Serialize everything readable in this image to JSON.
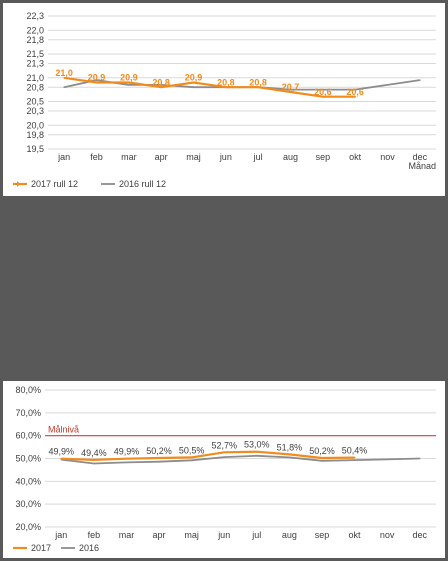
{
  "chart_data": [
    {
      "type": "line",
      "categories": [
        "jan",
        "feb",
        "mar",
        "apr",
        "maj",
        "jun",
        "jul",
        "aug",
        "sep",
        "okt",
        "nov",
        "dec"
      ],
      "xlabel": "Månad",
      "ylim": [
        19.5,
        22.3
      ],
      "yticks": [
        "22,3",
        "22,0",
        "21,8",
        "21,5",
        "21,3",
        "21,0",
        "20,8",
        "20,5",
        "20,3",
        "20,0",
        "19,8",
        "19,5"
      ],
      "ytick_values": [
        22.3,
        22.0,
        21.8,
        21.5,
        21.3,
        21.0,
        20.8,
        20.5,
        20.3,
        20.0,
        19.8,
        19.5
      ],
      "grid": true,
      "legend": "bottom-left",
      "series": [
        {
          "name": "2017 rull 12",
          "color": "#f08c1e",
          "values": [
            21.0,
            20.9,
            20.9,
            20.8,
            20.9,
            20.8,
            20.8,
            20.7,
            20.6,
            20.6,
            null,
            null
          ],
          "labels": [
            "21,0",
            "20,9",
            "20,9",
            "20,8",
            "20,9",
            "20,8",
            "20,8",
            "20,7",
            "20,6",
            "20,6",
            null,
            null
          ]
        },
        {
          "name": "2016 rull 12",
          "color": "#8c8c8c",
          "values": [
            20.8,
            20.95,
            20.85,
            20.85,
            20.8,
            20.8,
            20.8,
            20.75,
            20.75,
            20.75,
            20.85,
            20.95
          ]
        }
      ]
    },
    {
      "type": "line",
      "categories": [
        "jan",
        "feb",
        "mar",
        "apr",
        "maj",
        "jun",
        "jul",
        "aug",
        "sep",
        "okt",
        "nov",
        "dec"
      ],
      "ylim": [
        20,
        80
      ],
      "yticks": [
        "80,0%",
        "70,0%",
        "60,0%",
        "50,0%",
        "40,0%",
        "30,0%",
        "20,0%"
      ],
      "ytick_values": [
        80,
        70,
        60,
        50,
        40,
        30,
        20
      ],
      "grid": true,
      "legend": "bottom-left",
      "target": {
        "label": "Målnivå",
        "value": 60,
        "color": "#e04040"
      },
      "series": [
        {
          "name": "2017",
          "color": "#f08c1e",
          "values": [
            49.9,
            49.4,
            49.9,
            50.2,
            50.5,
            52.7,
            53.0,
            51.8,
            50.2,
            50.4,
            null,
            null
          ],
          "labels": [
            "49,9%",
            "49,4%",
            "49,9%",
            "50,2%",
            "50,5%",
            "52,7%",
            "53,0%",
            "51,8%",
            "50,2%",
            "50,4%",
            null,
            null
          ]
        },
        {
          "name": "2016",
          "color": "#8c8c8c",
          "values": [
            49.5,
            47.8,
            48.3,
            48.6,
            49.2,
            50.6,
            51.2,
            50.5,
            49.0,
            49.3,
            49.6,
            50.0
          ]
        }
      ]
    }
  ]
}
